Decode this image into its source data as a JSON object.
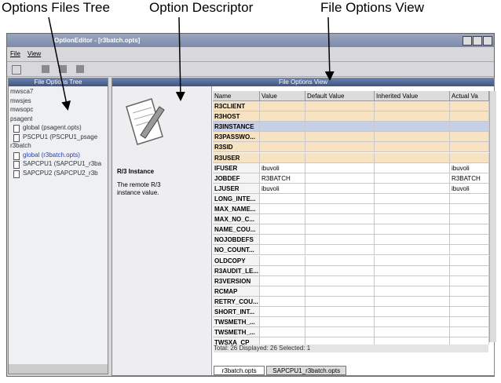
{
  "annotations": {
    "tree": "Options Files Tree",
    "descriptor": "Option Descriptor",
    "view": "File Options View"
  },
  "window": {
    "title": "OptionEditor - [r3batch.opts]",
    "menu": [
      "File",
      "View"
    ]
  },
  "tree_panel": {
    "title": "File Options Tree",
    "items": [
      {
        "label": "mwsca7"
      },
      {
        "label": "mwsjes"
      },
      {
        "label": "mwsopc"
      },
      {
        "label": "psagent",
        "children": [
          {
            "label": "global (psagent.opts)"
          },
          {
            "label": "PSCPU1 (PSCPU1_psage"
          }
        ]
      },
      {
        "label": "r3batch",
        "children": [
          {
            "label": "global (r3batch.opts)",
            "selected": true
          },
          {
            "label": "SAPCPU1 (SAPCPU1_r3ba"
          },
          {
            "label": "SAPCPU2 (SAPCPU2_r3b"
          }
        ]
      }
    ]
  },
  "view_panel": {
    "title": "File Options View",
    "descriptor": {
      "name": "R/3 Instance",
      "text": "The remote R/3 instance value."
    },
    "table": {
      "columns": [
        "Name",
        "Value",
        "Default Value",
        "Inherited Value",
        "Actual Va"
      ],
      "rows": [
        [
          "R3CLIENT",
          null,
          null,
          null,
          null
        ],
        [
          "R3HOST",
          null,
          null,
          null,
          null
        ],
        [
          "R3INSTANCE",
          null,
          null,
          null,
          null
        ],
        [
          "R3PASSWO...",
          null,
          null,
          null,
          null
        ],
        [
          "R3SID",
          null,
          null,
          null,
          null
        ],
        [
          "R3USER",
          null,
          null,
          null,
          null
        ],
        [
          "IFUSER",
          "ibuvoli",
          null,
          null,
          "ibuvoli"
        ],
        [
          "JOBDEF",
          "R3BATCH",
          null,
          null,
          "R3BATCH"
        ],
        [
          "LJUSER",
          "ibuvoli",
          null,
          null,
          "ibuvoli"
        ],
        [
          "LONG_INTE...",
          null,
          null,
          null,
          null
        ],
        [
          "MAX_NAME...",
          null,
          null,
          null,
          null
        ],
        [
          "MAX_NO_C...",
          null,
          null,
          null,
          null
        ],
        [
          "NAME_COU...",
          null,
          null,
          null,
          null
        ],
        [
          "NOJOBDEFS",
          null,
          null,
          null,
          null
        ],
        [
          "NO_COUNT...",
          null,
          null,
          null,
          null
        ],
        [
          "OLDCOPY",
          null,
          null,
          null,
          null
        ],
        [
          "R3AUDIT_LE...",
          null,
          null,
          null,
          null
        ],
        [
          "R3VERSION",
          null,
          null,
          null,
          null
        ],
        [
          "RCMAP",
          null,
          null,
          null,
          null
        ],
        [
          "RETRY_COU...",
          null,
          null,
          null,
          null
        ],
        [
          "SHORT_INT...",
          null,
          null,
          null,
          null
        ],
        [
          "TWSMETH_...",
          null,
          null,
          null,
          null
        ],
        [
          "TWSMETH_...",
          null,
          null,
          null,
          null
        ],
        [
          "TWSXA_CP",
          null,
          null,
          null,
          null
        ]
      ]
    },
    "status": "Total: 26 Displayed: 26 Selected: 1",
    "tabs": [
      "r3batch.opts",
      "SAPCPU1_r3batch.opts"
    ]
  }
}
